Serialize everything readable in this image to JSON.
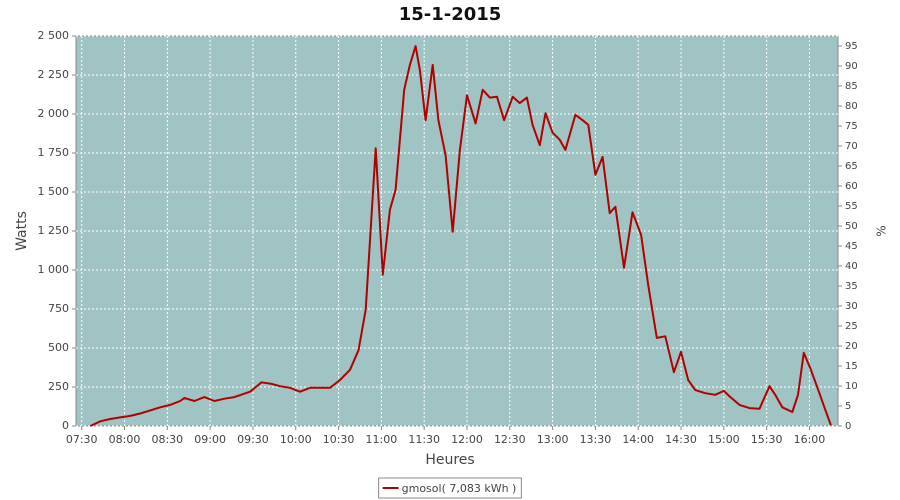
{
  "chart_data": {
    "type": "line",
    "title": "15-1-2015",
    "x_label": "Heures",
    "y_label": "Watts",
    "y2_label": "%",
    "x": [
      "07:36",
      "07:43",
      "07:50",
      "07:57",
      "08:04",
      "08:11",
      "08:18",
      "08:25",
      "08:32",
      "08:39",
      "08:42",
      "08:49",
      "08:56",
      "09:03",
      "09:10",
      "09:17",
      "09:28",
      "09:36",
      "09:43",
      "09:49",
      "09:56",
      "10:03",
      "10:10",
      "10:17",
      "10:24",
      "10:31",
      "10:38",
      "10:44",
      "10:49",
      "10:52",
      "10:56",
      "11:01",
      "11:06",
      "11:10",
      "11:16",
      "11:20",
      "11:24",
      "11:27",
      "11:31",
      "11:36",
      "11:40",
      "11:45",
      "11:50",
      "11:55",
      "12:00",
      "12:06",
      "12:11",
      "12:16",
      "12:21",
      "12:26",
      "12:32",
      "12:37",
      "12:42",
      "12:46",
      "12:51",
      "12:55",
      "13:00",
      "13:05",
      "13:09",
      "13:16",
      "13:21",
      "13:25",
      "13:30",
      "13:35",
      "13:40",
      "13:44",
      "13:50",
      "13:56",
      "14:02",
      "14:07",
      "14:13",
      "14:19",
      "14:25",
      "14:30",
      "14:35",
      "14:40",
      "14:47",
      "14:54",
      "15:00",
      "15:04",
      "15:11",
      "15:18",
      "15:25",
      "15:32",
      "15:36",
      "15:41",
      "15:48",
      "15:52",
      "15:56",
      "16:01",
      "16:07",
      "16:11",
      "16:15"
    ],
    "series": [
      {
        "name": "gmosol( 7,083 kWh )",
        "color": "#b00000",
        "values": [
          0,
          30,
          45,
          55,
          65,
          80,
          100,
          120,
          135,
          160,
          180,
          160,
          185,
          160,
          175,
          185,
          220,
          280,
          270,
          255,
          245,
          220,
          245,
          245,
          245,
          295,
          360,
          485,
          745,
          1190,
          1780,
          970,
          1385,
          1515,
          2155,
          2315,
          2435,
          2280,
          1960,
          2315,
          1960,
          1735,
          1245,
          1770,
          2120,
          1940,
          2155,
          2105,
          2110,
          1960,
          2110,
          2070,
          2105,
          1930,
          1800,
          2005,
          1880,
          1835,
          1770,
          1995,
          1960,
          1930,
          1610,
          1725,
          1365,
          1405,
          1015,
          1370,
          1225,
          905,
          565,
          575,
          345,
          475,
          295,
          230,
          210,
          200,
          225,
          190,
          135,
          115,
          110,
          255,
          200,
          120,
          90,
          200,
          470,
          360,
          210,
          105,
          5
        ]
      }
    ],
    "xlim": [
      "07:26",
      "16:20"
    ],
    "xticks": [
      "07:30",
      "08:00",
      "08:30",
      "09:00",
      "09:30",
      "10:00",
      "10:30",
      "11:00",
      "11:30",
      "12:00",
      "12:30",
      "13:00",
      "13:30",
      "14:00",
      "14:30",
      "15:00",
      "15:30",
      "16:00"
    ],
    "ylim": [
      0,
      2500
    ],
    "yticks": [
      0,
      250,
      500,
      750,
      {
        "value": 1000,
        "label": "1 000"
      },
      {
        "value": 1250,
        "label": "1 250"
      },
      {
        "value": 1500,
        "label": "1 500"
      },
      {
        "value": 1750,
        "label": "1 750"
      },
      {
        "value": 2000,
        "label": "2 000"
      },
      {
        "value": 2250,
        "label": "2 250"
      },
      {
        "value": 2500,
        "label": "2 500"
      }
    ],
    "y2lim": [
      0,
      97.5
    ],
    "y2ticks": [
      0,
      5,
      10,
      15,
      20,
      25,
      30,
      35,
      40,
      45,
      50,
      55,
      60,
      65,
      70,
      75,
      80,
      85,
      90,
      95
    ],
    "grid": true,
    "plot_background": "#a0c4c4",
    "legend": "bottom"
  }
}
